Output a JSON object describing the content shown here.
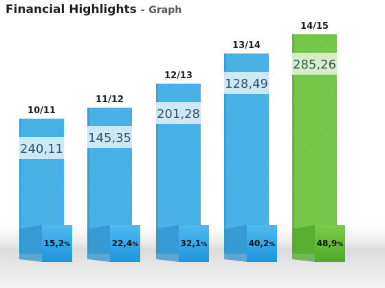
{
  "header": {
    "title": "Financial Highlights",
    "separator": "-",
    "subtitle": "Graph"
  },
  "colors": {
    "bar_blue": "#41aee4",
    "bar_blue_dark": "#2f93cc",
    "bar_green": "#70c442",
    "bar_green_dark": "#4fa82a",
    "label_band_blue": "#cde9f8",
    "label_band_green": "#d5eec7",
    "value_text": "#3a5566",
    "percent_box_blue": "#2aa6ec",
    "percent_box_green": "#5cb833",
    "shadow": "#d7d7d7"
  },
  "chart_data": {
    "type": "bar",
    "title": "Financial Highlights - Graph",
    "categories": [
      "10/11",
      "11/12",
      "12/13",
      "13/14",
      "14/15"
    ],
    "values": [
      "240,11",
      "145,35",
      "201,28",
      "128,49",
      "285,26"
    ],
    "percentages": [
      "15,2",
      "22,4",
      "32,1",
      "40,2",
      "48,9"
    ],
    "percent_unit": "%",
    "highlight_index": 4,
    "grid": false,
    "legend": "none"
  }
}
